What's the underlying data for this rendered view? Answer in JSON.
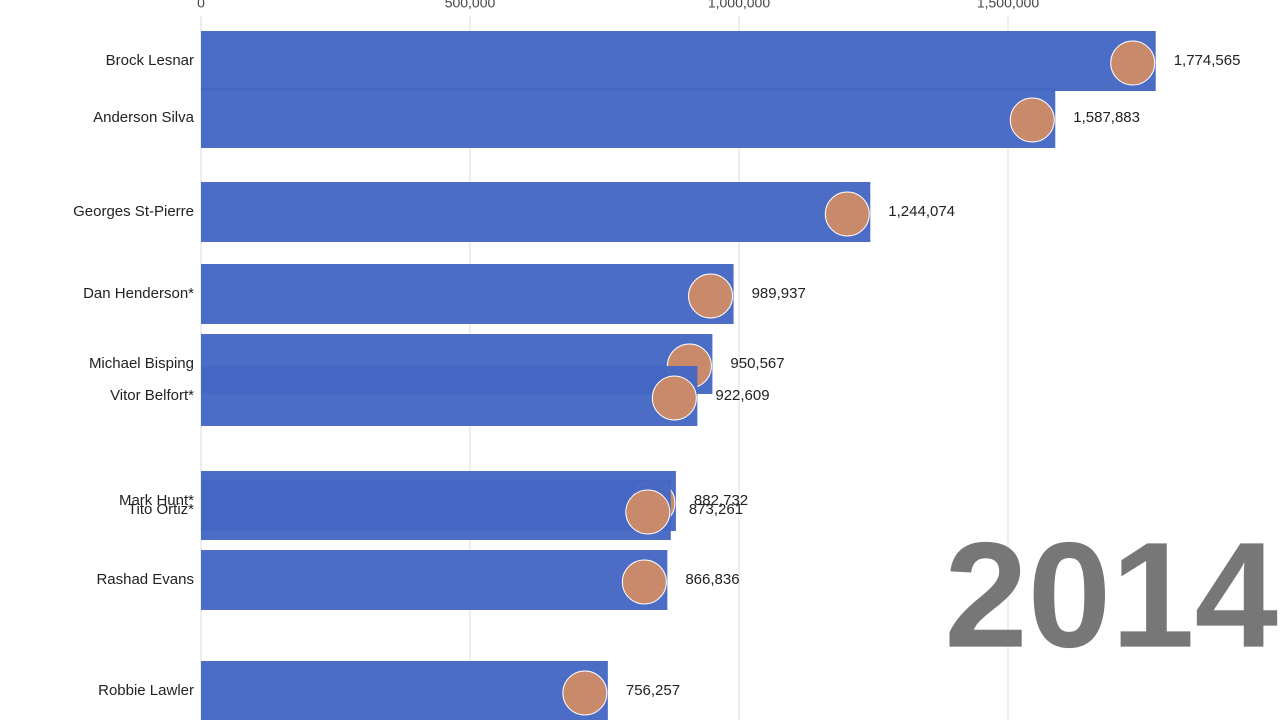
{
  "chart_data": {
    "type": "bar",
    "orientation": "horizontal",
    "categories": [
      "Brock Lesnar",
      "Anderson Silva",
      "Georges St-Pierre",
      "Dan Henderson*",
      "Michael Bisping",
      "Vitor Belfort*",
      "Mark Hunt*",
      "Tito Ortiz*",
      "Rashad Evans",
      "Robbie Lawler"
    ],
    "values": [
      1774565,
      1587883,
      1244074,
      989937,
      950567,
      922609,
      882732,
      873261,
      866836,
      756257
    ],
    "value_labels": [
      "1,774,565",
      "1,587,883",
      "1,244,074",
      "989,937",
      "950,567",
      "922,609",
      "882,732",
      "873,261",
      "866,836",
      "756,257"
    ],
    "color": "#4567c4",
    "xlim": [
      0,
      2000000
    ],
    "xticks": [
      0,
      {
        "value": 500000,
        "label": "500,000"
      },
      {
        "value": 1000000,
        "label": "1,000,000"
      },
      {
        "value": 1500000,
        "label": "1,500,000"
      }
    ],
    "grid": true,
    "annotation": "2014"
  }
}
